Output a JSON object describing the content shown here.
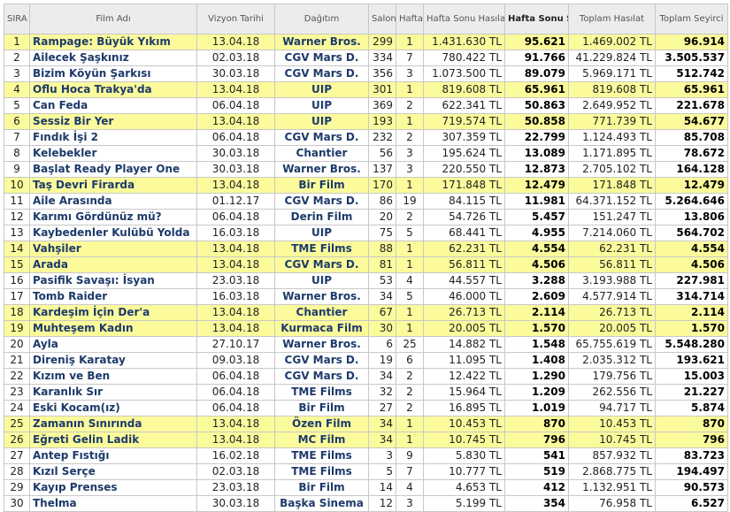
{
  "table": {
    "header": [
      "SIRA",
      "Film Adı",
      "Vizyon Tarihi",
      "Dağıtım",
      "Salon",
      "Hafta",
      "Hafta Sonu Hasılat",
      "Hafta Sonu Seyirci",
      "Toplam Hasılat",
      "Toplam Seyirci"
    ],
    "rows": [
      [
        "1",
        "Rampage: Büyük Yıkım",
        "13.04.18",
        "Warner Bros.",
        "299",
        "1",
        "1.431.630 TL",
        "95.621",
        "1.469.002 TL",
        "96.914"
      ],
      [
        "2",
        "Ailecek Şaşkınız",
        "02.03.18",
        "CGV Mars D.",
        "334",
        "7",
        "780.422 TL",
        "91.766",
        "41.229.824 TL",
        "3.505.537"
      ],
      [
        "3",
        "Bizim Köyün Şarkısı",
        "30.03.18",
        "CGV Mars D.",
        "356",
        "3",
        "1.073.500 TL",
        "89.079",
        "5.969.171 TL",
        "512.742"
      ],
      [
        "4",
        "Oflu Hoca Trakya'da",
        "13.04.18",
        "UIP",
        "301",
        "1",
        "819.608 TL",
        "65.961",
        "819.608 TL",
        "65.961"
      ],
      [
        "5",
        "Can Feda",
        "06.04.18",
        "UIP",
        "369",
        "2",
        "622.341 TL",
        "50.863",
        "2.649.952 TL",
        "221.678"
      ],
      [
        "6",
        "Sessiz Bir Yer",
        "13.04.18",
        "UIP",
        "193",
        "1",
        "719.574 TL",
        "50.858",
        "771.739 TL",
        "54.677"
      ],
      [
        "7",
        "Fındık İşi 2",
        "06.04.18",
        "CGV Mars D.",
        "232",
        "2",
        "307.359 TL",
        "22.799",
        "1.124.493 TL",
        "85.708"
      ],
      [
        "8",
        "Kelebekler",
        "30.03.18",
        "Chantier",
        "56",
        "3",
        "195.624 TL",
        "13.089",
        "1.171.895 TL",
        "78.672"
      ],
      [
        "9",
        "Başlat Ready Player One",
        "30.03.18",
        "Warner Bros.",
        "137",
        "3",
        "220.550 TL",
        "12.873",
        "2.705.102 TL",
        "164.128"
      ],
      [
        "10",
        "Taş Devri Firarda",
        "13.04.18",
        "Bir Film",
        "170",
        "1",
        "171.848 TL",
        "12.479",
        "171.848 TL",
        "12.479"
      ],
      [
        "11",
        "Aile Arasında",
        "01.12.17",
        "CGV Mars D.",
        "86",
        "19",
        "84.115 TL",
        "11.981",
        "64.371.152 TL",
        "5.264.646"
      ],
      [
        "12",
        "Karımı Gördünüz mü?",
        "06.04.18",
        "Derin Film",
        "20",
        "2",
        "54.726 TL",
        "5.457",
        "151.247 TL",
        "13.806"
      ],
      [
        "13",
        "Kaybedenler Kulübü Yolda",
        "16.03.18",
        "UIP",
        "75",
        "5",
        "68.441 TL",
        "4.955",
        "7.214.060 TL",
        "564.702"
      ],
      [
        "14",
        "Vahşiler",
        "13.04.18",
        "TME Films",
        "88",
        "1",
        "62.231 TL",
        "4.554",
        "62.231 TL",
        "4.554"
      ],
      [
        "15",
        "Arada",
        "13.04.18",
        "CGV Mars D.",
        "81",
        "1",
        "56.811 TL",
        "4.506",
        "56.811 TL",
        "4.506"
      ],
      [
        "16",
        "Pasifik Savaşı: İsyan",
        "23.03.18",
        "UIP",
        "53",
        "4",
        "44.557 TL",
        "3.288",
        "3.193.988 TL",
        "227.981"
      ],
      [
        "17",
        "Tomb Raider",
        "16.03.18",
        "Warner Bros.",
        "34",
        "5",
        "46.000 TL",
        "2.609",
        "4.577.914 TL",
        "314.714"
      ],
      [
        "18",
        "Kardeşim İçin Der'a",
        "13.04.18",
        "Chantier",
        "67",
        "1",
        "26.713 TL",
        "2.114",
        "26.713 TL",
        "2.114"
      ],
      [
        "19",
        "Muhteşem Kadın",
        "13.04.18",
        "Kurmaca Film",
        "30",
        "1",
        "20.005 TL",
        "1.570",
        "20.005 TL",
        "1.570"
      ],
      [
        "20",
        "Ayla",
        "27.10.17",
        "Warner Bros.",
        "6",
        "25",
        "14.882 TL",
        "1.548",
        "65.755.619 TL",
        "5.548.280"
      ],
      [
        "21",
        "Direniş Karatay",
        "09.03.18",
        "CGV Mars D.",
        "19",
        "6",
        "11.095 TL",
        "1.408",
        "2.035.312 TL",
        "193.621"
      ],
      [
        "22",
        "Kızım ve Ben",
        "06.04.18",
        "CGV Mars D.",
        "34",
        "2",
        "12.422 TL",
        "1.290",
        "179.756 TL",
        "15.003"
      ],
      [
        "23",
        "Karanlık Sır",
        "06.04.18",
        "TME Films",
        "32",
        "2",
        "15.964 TL",
        "1.209",
        "262.556 TL",
        "21.227"
      ],
      [
        "24",
        "Eski Kocam(ız)",
        "06.04.18",
        "Bir Film",
        "27",
        "2",
        "16.895 TL",
        "1.019",
        "94.717 TL",
        "5.874"
      ],
      [
        "25",
        "Zamanın Sınırında",
        "13.04.18",
        "Özen Film",
        "34",
        "1",
        "10.453 TL",
        "870",
        "10.453 TL",
        "870"
      ],
      [
        "26",
        "Eğreti Gelin Ladik",
        "13.04.18",
        "MC Film",
        "34",
        "1",
        "10.745 TL",
        "796",
        "10.745 TL",
        "796"
      ],
      [
        "27",
        "Antep Fıstığı",
        "16.02.18",
        "TME Films",
        "3",
        "9",
        "5.830 TL",
        "541",
        "857.932 TL",
        "83.723"
      ],
      [
        "28",
        "Kızıl Serçe",
        "02.03.18",
        "TME Films",
        "5",
        "7",
        "10.777 TL",
        "519",
        "2.868.775 TL",
        "194.497"
      ],
      [
        "29",
        "Kayıp Prenses",
        "23.03.18",
        "Bir Film",
        "14",
        "4",
        "4.653 TL",
        "412",
        "1.132.951 TL",
        "90.573"
      ],
      [
        "30",
        "Thelma",
        "30.03.18",
        "Başka Sinema",
        "12",
        "3",
        "5.199 TL",
        "354",
        "76.958 TL",
        "6.527"
      ]
    ],
    "highlight_rows": [
      0,
      3,
      5,
      9,
      13,
      14,
      17,
      18,
      24,
      25
    ],
    "highlight_color": "#fbfb9c"
  }
}
